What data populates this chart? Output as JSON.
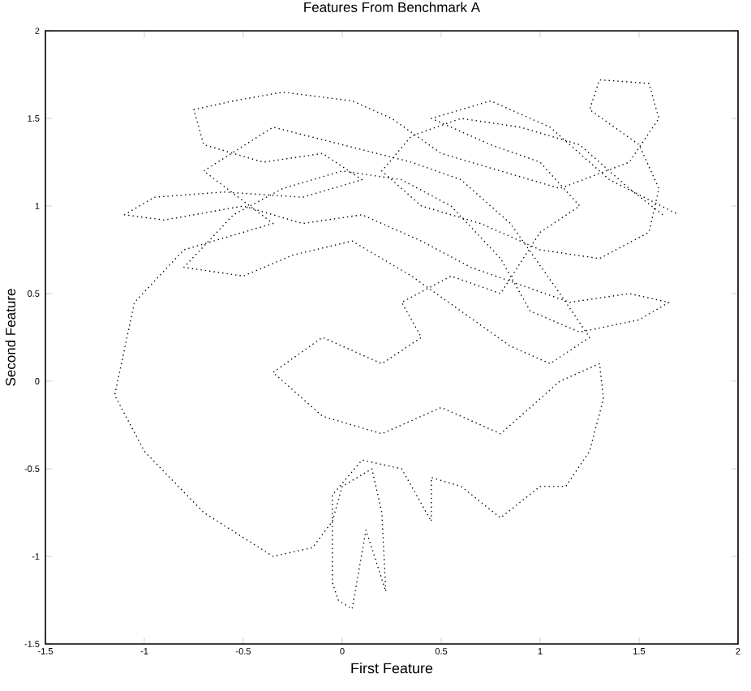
{
  "chart_data": {
    "type": "line",
    "title": "Features From Benchmark A",
    "xlabel": "First Feature",
    "ylabel": "Second Feature",
    "xlim": [
      -1.5,
      2
    ],
    "ylim": [
      -1.5,
      2
    ],
    "xticks": [
      -1.5,
      -1,
      -0.5,
      0,
      0.5,
      1,
      1.5,
      2
    ],
    "yticks": [
      -1.5,
      -1,
      -0.5,
      0,
      0.5,
      1,
      1.5,
      2
    ],
    "grid": false,
    "marker": "none",
    "line_style": "dotted",
    "series": [
      {
        "color": "#000000",
        "x": [
          1.62,
          1.45,
          1.2,
          0.9,
          0.6,
          0.35,
          0.2,
          0.4,
          0.7,
          1.0,
          1.3,
          1.55,
          1.6,
          1.5,
          1.25,
          1.3,
          1.55,
          1.6,
          1.45,
          1.1,
          0.8,
          0.5,
          0.25,
          0.05,
          -0.3,
          -0.55,
          -0.75,
          -0.7,
          -0.4,
          -0.1,
          0.1,
          -0.2,
          -0.6,
          -0.95,
          -1.1,
          -0.9,
          -0.5,
          -0.2,
          0.1,
          0.4,
          0.65,
          0.9,
          1.15,
          1.45,
          1.65,
          1.5,
          1.2,
          0.95,
          0.8,
          0.55,
          0.3,
          0.0,
          -0.3,
          -0.55,
          -0.8,
          -0.5,
          -0.25,
          0.05,
          0.35,
          0.6,
          0.85,
          1.05,
          1.25,
          1.1,
          0.85,
          0.6,
          0.35,
          0.0,
          -0.35,
          -0.7,
          -0.35,
          -0.8,
          -1.05,
          -1.15,
          -1.0,
          -0.7,
          -0.35,
          -0.15,
          -0.05,
          0.0,
          0.15,
          0.2,
          0.22,
          0.12,
          0.05,
          -0.02,
          -0.05,
          -0.05,
          0.1,
          0.3,
          0.45,
          0.45,
          0.6,
          0.8,
          1.0,
          1.13,
          1.25,
          1.32,
          1.3,
          1.1,
          0.8,
          0.5,
          0.2,
          -0.1,
          -0.35,
          -0.1,
          0.2,
          0.4,
          0.3,
          0.55,
          0.8,
          1.0,
          1.2,
          1.0,
          0.75,
          0.45,
          0.75,
          1.05,
          1.35,
          1.7
        ],
        "values": [
          0.95,
          1.1,
          1.35,
          1.45,
          1.5,
          1.4,
          1.2,
          1.0,
          0.9,
          0.75,
          0.7,
          0.85,
          1.1,
          1.35,
          1.55,
          1.72,
          1.7,
          1.5,
          1.25,
          1.1,
          1.2,
          1.3,
          1.5,
          1.6,
          1.65,
          1.6,
          1.55,
          1.35,
          1.25,
          1.3,
          1.15,
          1.05,
          1.08,
          1.05,
          0.95,
          0.92,
          1.0,
          0.9,
          0.95,
          0.8,
          0.65,
          0.55,
          0.45,
          0.5,
          0.45,
          0.35,
          0.28,
          0.4,
          0.7,
          1.0,
          1.15,
          1.2,
          1.1,
          0.95,
          0.65,
          0.6,
          0.72,
          0.8,
          0.6,
          0.4,
          0.2,
          0.1,
          0.25,
          0.5,
          0.9,
          1.15,
          1.25,
          1.35,
          1.45,
          1.2,
          0.9,
          0.75,
          0.45,
          -0.08,
          -0.4,
          -0.75,
          -1.0,
          -0.95,
          -0.8,
          -0.6,
          -0.5,
          -0.75,
          -1.2,
          -0.85,
          -1.3,
          -1.25,
          -1.15,
          -0.65,
          -0.45,
          -0.5,
          -0.8,
          -0.55,
          -0.6,
          -0.78,
          -0.6,
          -0.6,
          -0.4,
          -0.1,
          0.1,
          0.0,
          -0.3,
          -0.15,
          -0.3,
          -0.2,
          0.05,
          0.25,
          0.1,
          0.25,
          0.45,
          0.6,
          0.5,
          0.85,
          1.0,
          1.25,
          1.35,
          1.5,
          1.6,
          1.45,
          1.15,
          0.95
        ]
      }
    ]
  }
}
